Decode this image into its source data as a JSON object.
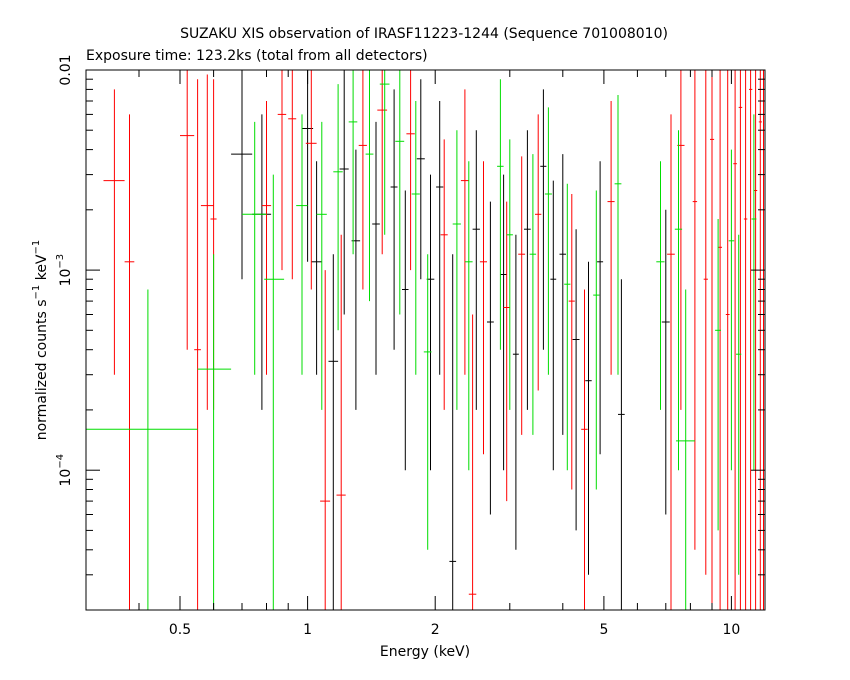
{
  "chart_data": {
    "type": "scatter",
    "title": "SUZAKU XIS observation of IRASF11223-1244 (Sequence 701008010)",
    "subtitle": "Exposure time: 123.2ks (total from all detectors)",
    "xlabel": "Energy (keV)",
    "ylabel_main": "normalized counts s",
    "ylabel_exp1": "−1",
    "ylabel_mid": " keV",
    "ylabel_exp2": "−1",
    "xscale": "log",
    "yscale": "log",
    "xlim": [
      0.3,
      12.0
    ],
    "ylim": [
      2e-05,
      0.01
    ],
    "xticks": [
      {
        "value": 0.5,
        "label": "0.5"
      },
      {
        "value": 1,
        "label": "1"
      },
      {
        "value": 2,
        "label": "2"
      },
      {
        "value": 5,
        "label": "5"
      },
      {
        "value": 10,
        "label": "10"
      }
    ],
    "yticks": [
      {
        "value": 0.01,
        "label": "0.01"
      },
      {
        "value": 0.001,
        "base": "10",
        "exp": "−3"
      },
      {
        "value": 0.0001,
        "base": "10",
        "exp": "−4"
      }
    ],
    "grid": false,
    "legend": "none",
    "series": [
      {
        "color": "#000000",
        "points": [
          {
            "x": 0.7,
            "xlo": 0.66,
            "xhi": 0.74,
            "y": 0.0038,
            "ylo": 0.0009,
            "yhi": 0.01
          },
          {
            "x": 0.78,
            "xlo": 0.74,
            "xhi": 0.82,
            "y": 0.0019,
            "ylo": 0.0002,
            "yhi": 0.006
          },
          {
            "x": 1.0,
            "xlo": 0.97,
            "xhi": 1.03,
            "y": 0.0051,
            "ylo": 0.0011,
            "yhi": 0.01
          },
          {
            "x": 1.05,
            "xlo": 1.02,
            "xhi": 1.08,
            "y": 0.0011,
            "ylo": 0.0003,
            "yhi": 0.0035
          },
          {
            "x": 1.15,
            "xlo": 1.12,
            "xhi": 1.18,
            "y": 0.00035,
            "ylo": 2e-05,
            "yhi": 0.0012
          },
          {
            "x": 1.22,
            "xlo": 1.19,
            "xhi": 1.25,
            "y": 0.0032,
            "ylo": 0.0006,
            "yhi": 0.01
          },
          {
            "x": 1.3,
            "xlo": 1.27,
            "xhi": 1.33,
            "y": 0.0014,
            "ylo": 0.0002,
            "yhi": 0.004
          },
          {
            "x": 1.45,
            "xlo": 1.42,
            "xhi": 1.48,
            "y": 0.0017,
            "ylo": 0.0003,
            "yhi": 0.0055
          },
          {
            "x": 1.6,
            "xlo": 1.57,
            "xhi": 1.63,
            "y": 0.0026,
            "ylo": 0.0004,
            "yhi": 0.008
          },
          {
            "x": 1.7,
            "xlo": 1.67,
            "xhi": 1.73,
            "y": 0.0008,
            "ylo": 0.0001,
            "yhi": 0.0025
          },
          {
            "x": 1.85,
            "xlo": 1.81,
            "xhi": 1.89,
            "y": 0.0036,
            "ylo": 0.0009,
            "yhi": 0.009
          },
          {
            "x": 1.95,
            "xlo": 1.91,
            "xhi": 1.99,
            "y": 0.0009,
            "ylo": 0.0001,
            "yhi": 0.003
          },
          {
            "x": 2.05,
            "xlo": 2.01,
            "xhi": 2.09,
            "y": 0.0026,
            "ylo": 0.0003,
            "yhi": 0.007
          },
          {
            "x": 2.2,
            "xlo": 2.16,
            "xhi": 2.24,
            "y": 3.5e-05,
            "ylo": 2e-05,
            "yhi": 0.0012
          },
          {
            "x": 2.5,
            "xlo": 2.45,
            "xhi": 2.55,
            "y": 0.0016,
            "ylo": 0.0002,
            "yhi": 0.005
          },
          {
            "x": 2.7,
            "xlo": 2.65,
            "xhi": 2.75,
            "y": 0.00055,
            "ylo": 6e-05,
            "yhi": 0.0022
          },
          {
            "x": 2.9,
            "xlo": 2.85,
            "xhi": 2.95,
            "y": 0.00095,
            "ylo": 0.0001,
            "yhi": 0.003
          },
          {
            "x": 3.1,
            "xlo": 3.05,
            "xhi": 3.15,
            "y": 0.00038,
            "ylo": 4e-05,
            "yhi": 0.0015
          },
          {
            "x": 3.3,
            "xlo": 3.24,
            "xhi": 3.36,
            "y": 0.0016,
            "ylo": 0.0002,
            "yhi": 0.005
          },
          {
            "x": 3.6,
            "xlo": 3.54,
            "xhi": 3.66,
            "y": 0.0033,
            "ylo": 0.0004,
            "yhi": 0.008
          },
          {
            "x": 3.8,
            "xlo": 3.74,
            "xhi": 3.86,
            "y": 0.0009,
            "ylo": 0.0001,
            "yhi": 0.0028
          },
          {
            "x": 4.0,
            "xlo": 3.93,
            "xhi": 4.07,
            "y": 0.0012,
            "ylo": 0.00015,
            "yhi": 0.0038
          },
          {
            "x": 4.3,
            "xlo": 4.22,
            "xhi": 4.38,
            "y": 0.00045,
            "ylo": 5e-05,
            "yhi": 0.0016
          },
          {
            "x": 4.6,
            "xlo": 4.52,
            "xhi": 4.68,
            "y": 0.00028,
            "ylo": 3e-05,
            "yhi": 0.0011
          },
          {
            "x": 4.9,
            "xlo": 4.82,
            "xhi": 4.98,
            "y": 0.0011,
            "ylo": 0.00012,
            "yhi": 0.0035
          },
          {
            "x": 5.5,
            "xlo": 5.4,
            "xhi": 5.6,
            "y": 0.00019,
            "ylo": 2e-05,
            "yhi": 0.0009
          },
          {
            "x": 7.0,
            "xlo": 6.85,
            "xhi": 7.15,
            "y": 0.00055,
            "ylo": 6e-05,
            "yhi": 0.002
          }
        ]
      },
      {
        "color": "#ff0000",
        "points": [
          {
            "x": 0.35,
            "xlo": 0.33,
            "xhi": 0.37,
            "y": 0.0028,
            "ylo": 0.0003,
            "yhi": 0.008
          },
          {
            "x": 0.38,
            "xlo": 0.37,
            "xhi": 0.39,
            "y": 0.0011,
            "ylo": 2e-05,
            "yhi": 0.006
          },
          {
            "x": 0.52,
            "xlo": 0.5,
            "xhi": 0.54,
            "y": 0.0047,
            "ylo": 0.0004,
            "yhi": 0.01
          },
          {
            "x": 0.55,
            "xlo": 0.54,
            "xhi": 0.56,
            "y": 0.0004,
            "ylo": 2e-05,
            "yhi": 0.009
          },
          {
            "x": 0.58,
            "xlo": 0.56,
            "xhi": 0.6,
            "y": 0.0021,
            "ylo": 0.0002,
            "yhi": 0.0095
          },
          {
            "x": 0.6,
            "xlo": 0.59,
            "xhi": 0.61,
            "y": 0.0018,
            "ylo": 0.0002,
            "yhi": 0.009
          },
          {
            "x": 0.8,
            "xlo": 0.78,
            "xhi": 0.82,
            "y": 0.0021,
            "ylo": 0.0003,
            "yhi": 0.007
          },
          {
            "x": 0.87,
            "xlo": 0.85,
            "xhi": 0.89,
            "y": 0.006,
            "ylo": 0.001,
            "yhi": 0.01
          },
          {
            "x": 0.92,
            "xlo": 0.9,
            "xhi": 0.94,
            "y": 0.0057,
            "ylo": 0.0009,
            "yhi": 0.01
          },
          {
            "x": 1.02,
            "xlo": 0.99,
            "xhi": 1.05,
            "y": 0.0043,
            "ylo": 0.0008,
            "yhi": 0.01
          },
          {
            "x": 1.1,
            "xlo": 1.07,
            "xhi": 1.13,
            "y": 7e-05,
            "ylo": 2e-05,
            "yhi": 0.001
          },
          {
            "x": 1.2,
            "xlo": 1.17,
            "xhi": 1.23,
            "y": 7.5e-05,
            "ylo": 2e-05,
            "yhi": 0.0015
          },
          {
            "x": 1.35,
            "xlo": 1.32,
            "xhi": 1.38,
            "y": 0.0042,
            "ylo": 0.0008,
            "yhi": 0.01
          },
          {
            "x": 1.5,
            "xlo": 1.46,
            "xhi": 1.54,
            "y": 0.0063,
            "ylo": 0.0012,
            "yhi": 0.01
          },
          {
            "x": 1.75,
            "xlo": 1.71,
            "xhi": 1.79,
            "y": 0.0048,
            "ylo": 0.001,
            "yhi": 0.01
          },
          {
            "x": 2.1,
            "xlo": 2.06,
            "xhi": 2.14,
            "y": 0.0015,
            "ylo": 0.0002,
            "yhi": 0.0045
          },
          {
            "x": 2.35,
            "xlo": 2.3,
            "xhi": 2.4,
            "y": 0.0028,
            "ylo": 0.0003,
            "yhi": 0.008
          },
          {
            "x": 2.45,
            "xlo": 2.4,
            "xhi": 2.5,
            "y": 2.4e-05,
            "ylo": 2e-05,
            "yhi": 0.0006
          },
          {
            "x": 2.6,
            "xlo": 2.55,
            "xhi": 2.65,
            "y": 0.0011,
            "ylo": 0.00012,
            "yhi": 0.0035
          },
          {
            "x": 2.95,
            "xlo": 2.9,
            "xhi": 3.0,
            "y": 0.00065,
            "ylo": 7e-05,
            "yhi": 0.0022
          },
          {
            "x": 3.2,
            "xlo": 3.14,
            "xhi": 3.26,
            "y": 0.0012,
            "ylo": 0.00015,
            "yhi": 0.0037
          },
          {
            "x": 3.5,
            "xlo": 3.44,
            "xhi": 3.56,
            "y": 0.0019,
            "ylo": 0.00025,
            "yhi": 0.006
          },
          {
            "x": 4.2,
            "xlo": 4.13,
            "xhi": 4.27,
            "y": 0.0007,
            "ylo": 8e-05,
            "yhi": 0.0024
          },
          {
            "x": 4.5,
            "xlo": 4.42,
            "xhi": 4.58,
            "y": 0.00016,
            "ylo": 2e-05,
            "yhi": 0.0008
          },
          {
            "x": 5.2,
            "xlo": 5.1,
            "xhi": 5.3,
            "y": 0.0022,
            "ylo": 0.0003,
            "yhi": 0.007
          },
          {
            "x": 7.2,
            "xlo": 7.05,
            "xhi": 7.35,
            "y": 0.0012,
            "ylo": 2e-05,
            "yhi": 0.006
          },
          {
            "x": 7.6,
            "xlo": 7.45,
            "xhi": 7.75,
            "y": 0.0042,
            "ylo": 0.0002,
            "yhi": 0.01
          },
          {
            "x": 8.2,
            "xlo": 8.1,
            "xhi": 8.3,
            "y": 0.0022,
            "ylo": 4e-05,
            "yhi": 0.01
          },
          {
            "x": 8.7,
            "xlo": 8.6,
            "xhi": 8.8,
            "y": 0.0009,
            "ylo": 3e-05,
            "yhi": 0.01
          },
          {
            "x": 9.0,
            "xlo": 8.9,
            "xhi": 9.1,
            "y": 0.0045,
            "ylo": 2e-05,
            "yhi": 0.01
          },
          {
            "x": 9.4,
            "xlo": 9.3,
            "xhi": 9.5,
            "y": 0.0013,
            "ylo": 2e-05,
            "yhi": 0.01
          },
          {
            "x": 9.8,
            "xlo": 9.7,
            "xhi": 9.9,
            "y": 0.0006,
            "ylo": 2e-05,
            "yhi": 0.01
          },
          {
            "x": 10.2,
            "xlo": 10.1,
            "xhi": 10.3,
            "y": 0.0034,
            "ylo": 2e-05,
            "yhi": 0.01
          },
          {
            "x": 10.5,
            "xlo": 10.4,
            "xhi": 10.6,
            "y": 0.0065,
            "ylo": 2e-05,
            "yhi": 0.01
          },
          {
            "x": 10.8,
            "xlo": 10.7,
            "xhi": 10.9,
            "y": 0.0018,
            "ylo": 2e-05,
            "yhi": 0.01
          },
          {
            "x": 11.1,
            "xlo": 11.0,
            "xhi": 11.2,
            "y": 0.008,
            "ylo": 2e-05,
            "yhi": 0.01
          },
          {
            "x": 11.4,
            "xlo": 11.3,
            "xhi": 11.5,
            "y": 0.0025,
            "ylo": 2e-05,
            "yhi": 0.01
          },
          {
            "x": 11.7,
            "xlo": 11.6,
            "xhi": 11.8,
            "y": 0.0055,
            "ylo": 2e-05,
            "yhi": 0.01
          },
          {
            "x": 11.9,
            "xlo": 11.85,
            "xhi": 11.95,
            "y": 0.009,
            "ylo": 2e-05,
            "yhi": 0.01
          }
        ]
      },
      {
        "color": "#00dd00",
        "points": [
          {
            "x": 0.42,
            "xlo": 0.3,
            "xhi": 0.55,
            "y": 0.00016,
            "ylo": 2e-05,
            "yhi": 0.0008
          },
          {
            "x": 0.6,
            "xlo": 0.55,
            "xhi": 0.66,
            "y": 0.00032,
            "ylo": 2e-05,
            "yhi": 0.0012
          },
          {
            "x": 0.75,
            "xlo": 0.7,
            "xhi": 0.8,
            "y": 0.0019,
            "ylo": 0.0003,
            "yhi": 0.0055
          },
          {
            "x": 0.83,
            "xlo": 0.79,
            "xhi": 0.88,
            "y": 0.0009,
            "ylo": 2e-05,
            "yhi": 0.003
          },
          {
            "x": 0.97,
            "xlo": 0.94,
            "xhi": 1.0,
            "y": 0.0021,
            "ylo": 0.0003,
            "yhi": 0.006
          },
          {
            "x": 1.08,
            "xlo": 1.05,
            "xhi": 1.11,
            "y": 0.0019,
            "ylo": 0.0002,
            "yhi": 0.0055
          },
          {
            "x": 1.18,
            "xlo": 1.15,
            "xhi": 1.21,
            "y": 0.0031,
            "ylo": 0.0005,
            "yhi": 0.0085
          },
          {
            "x": 1.28,
            "xlo": 1.25,
            "xhi": 1.31,
            "y": 0.0055,
            "ylo": 0.0012,
            "yhi": 0.01
          },
          {
            "x": 1.4,
            "xlo": 1.37,
            "xhi": 1.43,
            "y": 0.0038,
            "ylo": 0.0007,
            "yhi": 0.01
          },
          {
            "x": 1.52,
            "xlo": 1.48,
            "xhi": 1.56,
            "y": 0.0085,
            "ylo": 0.0015,
            "yhi": 0.01
          },
          {
            "x": 1.65,
            "xlo": 1.61,
            "xhi": 1.69,
            "y": 0.0044,
            "ylo": 0.0006,
            "yhi": 0.01
          },
          {
            "x": 1.8,
            "xlo": 1.76,
            "xhi": 1.84,
            "y": 0.0024,
            "ylo": 0.0003,
            "yhi": 0.007
          },
          {
            "x": 1.92,
            "xlo": 1.88,
            "xhi": 1.96,
            "y": 0.00039,
            "ylo": 4e-05,
            "yhi": 0.0012
          },
          {
            "x": 2.25,
            "xlo": 2.2,
            "xhi": 2.3,
            "y": 0.0017,
            "ylo": 0.0002,
            "yhi": 0.005
          },
          {
            "x": 2.4,
            "xlo": 2.35,
            "xhi": 2.45,
            "y": 0.0011,
            "ylo": 0.0001,
            "yhi": 0.0035
          },
          {
            "x": 2.85,
            "xlo": 2.8,
            "xhi": 2.9,
            "y": 0.0033,
            "ylo": 0.0004,
            "yhi": 0.009
          },
          {
            "x": 3.0,
            "xlo": 2.95,
            "xhi": 3.05,
            "y": 0.0015,
            "ylo": 0.0002,
            "yhi": 0.0045
          },
          {
            "x": 3.4,
            "xlo": 3.34,
            "xhi": 3.46,
            "y": 0.0012,
            "ylo": 0.00015,
            "yhi": 0.0038
          },
          {
            "x": 3.7,
            "xlo": 3.63,
            "xhi": 3.77,
            "y": 0.0024,
            "ylo": 0.0003,
            "yhi": 0.0065
          },
          {
            "x": 4.1,
            "xlo": 4.03,
            "xhi": 4.17,
            "y": 0.00085,
            "ylo": 0.0001,
            "yhi": 0.0027
          },
          {
            "x": 4.8,
            "xlo": 4.72,
            "xhi": 4.88,
            "y": 0.00075,
            "ylo": 8e-05,
            "yhi": 0.0025
          },
          {
            "x": 5.4,
            "xlo": 5.3,
            "xhi": 5.5,
            "y": 0.0027,
            "ylo": 0.0003,
            "yhi": 0.0075
          },
          {
            "x": 6.8,
            "xlo": 6.65,
            "xhi": 6.95,
            "y": 0.0011,
            "ylo": 0.0002,
            "yhi": 0.0035
          },
          {
            "x": 7.5,
            "xlo": 7.35,
            "xhi": 7.65,
            "y": 0.0016,
            "ylo": 0.0001,
            "yhi": 0.005
          },
          {
            "x": 7.8,
            "xlo": 7.4,
            "xhi": 8.2,
            "y": 0.00014,
            "ylo": 2e-05,
            "yhi": 0.0008
          },
          {
            "x": 9.3,
            "xlo": 9.15,
            "xhi": 9.45,
            "y": 0.0005,
            "ylo": 5e-05,
            "yhi": 0.0018
          },
          {
            "x": 10.0,
            "xlo": 9.85,
            "xhi": 10.15,
            "y": 0.0014,
            "ylo": 0.0001,
            "yhi": 0.004
          },
          {
            "x": 10.4,
            "xlo": 10.25,
            "xhi": 10.55,
            "y": 0.00038,
            "ylo": 3e-05,
            "yhi": 0.0015
          },
          {
            "x": 11.3,
            "xlo": 11.15,
            "xhi": 11.45,
            "y": 0.0018,
            "ylo": 0.0001,
            "yhi": 0.006
          }
        ]
      }
    ]
  }
}
